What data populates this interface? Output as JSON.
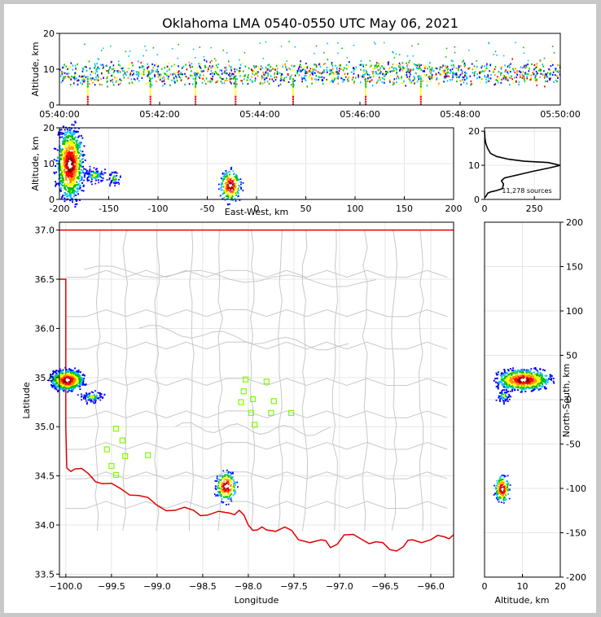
{
  "title": "Oklahoma LMA 0540-0550 UTC May 06, 2021",
  "colors": {
    "state_border": "#e00000",
    "county_lines": "#c8c8c8",
    "stations": "#7cfc00",
    "density_scale": [
      "#0000ff",
      "#00bfff",
      "#00c000",
      "#ffff00",
      "#ff8c00",
      "#ff0000",
      "#800000",
      "#ffffff"
    ]
  },
  "chart_data": [
    {
      "name": "altitude-time",
      "type": "heatmap",
      "xlabel": "",
      "ylabel": "Altitude, km",
      "xticks": [
        "05:40:00",
        "05:42:00",
        "05:44:00",
        "05:46:00",
        "05:48:00",
        "05:50:00"
      ],
      "xlim_minutes": [
        0,
        10
      ],
      "ylim": [
        0,
        20
      ],
      "yticks": [
        0,
        10,
        20
      ],
      "band_altitude_km": [
        7,
        12
      ],
      "vertical_streaks_minutes": [
        0.55,
        1.8,
        2.7,
        3.5,
        4.65,
        6.1,
        7.2
      ]
    },
    {
      "name": "altitude-east-west",
      "type": "heatmap",
      "xlabel": "East-West, km",
      "ylabel": "Altitude, km",
      "xlim": [
        -200,
        200
      ],
      "xticks": [
        -200,
        -150,
        -100,
        -50,
        0,
        50,
        100,
        150,
        200
      ],
      "ylim": [
        0,
        20
      ],
      "yticks": [
        0,
        10,
        20
      ],
      "clusters": [
        {
          "x": -190,
          "alt": 10,
          "intensity": "high"
        },
        {
          "x": -165,
          "alt": 7,
          "intensity": "low"
        },
        {
          "x": -145,
          "alt": 6,
          "intensity": "low"
        },
        {
          "x": -27,
          "alt": 4,
          "intensity": "medium"
        }
      ]
    },
    {
      "name": "altitude-histogram",
      "type": "line",
      "xlim": [
        0,
        380
      ],
      "xticks": [
        0,
        250
      ],
      "ylim": [
        0,
        21
      ],
      "yticks": [
        0,
        10,
        20
      ],
      "annotation": "11,278 sources",
      "profile": [
        [
          0,
          0.5
        ],
        [
          8,
          1
        ],
        [
          15,
          1.8
        ],
        [
          30,
          2.2
        ],
        [
          60,
          2.6
        ],
        [
          90,
          3.2
        ],
        [
          95,
          4.5
        ],
        [
          85,
          5.5
        ],
        [
          100,
          6.3
        ],
        [
          130,
          6.7
        ],
        [
          175,
          7.3
        ],
        [
          240,
          8.2
        ],
        [
          330,
          9.3
        ],
        [
          380,
          10
        ],
        [
          320,
          10.8
        ],
        [
          200,
          11.2
        ],
        [
          120,
          11.8
        ],
        [
          60,
          12.6
        ],
        [
          30,
          13.5
        ],
        [
          15,
          15
        ],
        [
          6,
          16.5
        ],
        [
          2,
          18
        ],
        [
          0,
          20
        ]
      ]
    },
    {
      "name": "plan-view",
      "type": "heatmap",
      "xlabel": "Longitude",
      "ylabel": "Latitude",
      "xlim": [
        -100.07,
        -95.75
      ],
      "xticks": [
        -100.0,
        -99.5,
        -99.0,
        -98.5,
        -98.0,
        -97.5,
        -97.0,
        -96.5,
        -96.0
      ],
      "xticklabels": [
        "−100.0",
        "−99.5",
        "−99.0",
        "−98.5",
        "−98.0",
        "−97.5",
        "−97.0",
        "−96.5",
        "−96.0"
      ],
      "ylim": [
        33.47,
        37.08
      ],
      "yticks": [
        33.5,
        34.0,
        34.5,
        35.0,
        35.5,
        36.0,
        36.5,
        37.0
      ],
      "yticklabels": [
        "33.5",
        "34.0",
        "34.5",
        "35.0",
        "35.5",
        "36.0",
        "36.5",
        "37.0"
      ],
      "clusters": [
        {
          "lon": -99.99,
          "lat": 35.48,
          "intensity": "high"
        },
        {
          "lon": -99.7,
          "lat": 35.31,
          "intensity": "low"
        },
        {
          "lon": -98.25,
          "lat": 34.4,
          "intensity": "medium"
        }
      ],
      "stations": [
        [
          -98.03,
          35.48
        ],
        [
          -97.8,
          35.46
        ],
        [
          -98.05,
          35.36
        ],
        [
          -97.95,
          35.28
        ],
        [
          -97.72,
          35.26
        ],
        [
          -98.08,
          35.25
        ],
        [
          -97.97,
          35.14
        ],
        [
          -97.75,
          35.14
        ],
        [
          -97.53,
          35.14
        ],
        [
          -97.93,
          35.02
        ],
        [
          -99.45,
          34.98
        ],
        [
          -99.38,
          34.86
        ],
        [
          -99.55,
          34.77
        ],
        [
          -99.35,
          34.7
        ],
        [
          -99.1,
          34.71
        ],
        [
          -99.5,
          34.6
        ],
        [
          -99.45,
          34.51
        ]
      ]
    },
    {
      "name": "north-south-altitude",
      "type": "heatmap",
      "xlabel": "Altitude, km",
      "ylabel": "North-South, km",
      "xlim": [
        0,
        20
      ],
      "xticks": [
        0,
        10,
        20
      ],
      "ylim": [
        -200,
        200
      ],
      "yticks": [
        -200,
        -150,
        -100,
        -50,
        0,
        50,
        100,
        150,
        200
      ],
      "clusters": [
        {
          "alt": 10,
          "y": 23,
          "intensity": "high"
        },
        {
          "alt": 5,
          "y": 5,
          "intensity": "low"
        },
        {
          "alt": 4.5,
          "y": -100,
          "intensity": "medium"
        }
      ]
    }
  ]
}
